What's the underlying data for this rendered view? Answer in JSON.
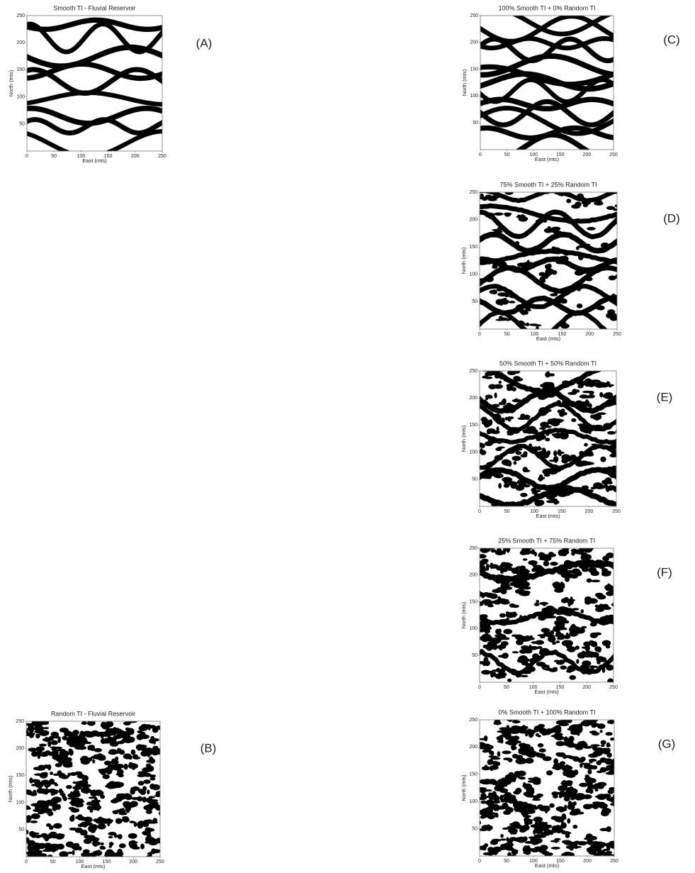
{
  "panels": [
    {
      "title": "Smooth TI - Fluvial Reservoir",
      "label": "(A)",
      "x_label": "East (mts)",
      "y_label": "North (mts)",
      "xlim": [
        0,
        250
      ],
      "ylim": [
        0,
        250
      ],
      "xticks": [
        0,
        50,
        100,
        150,
        200,
        250
      ],
      "yticks": [
        50,
        100,
        150,
        200,
        250
      ]
    },
    {
      "title": "Random TI - Fluvial Reservoir",
      "label": "(B)",
      "x_label": "East (mts)",
      "y_label": "North (mts)",
      "xlim": [
        0,
        250
      ],
      "ylim": [
        0,
        250
      ],
      "xticks": [
        0,
        50,
        100,
        150,
        200,
        250
      ],
      "yticks": [
        50,
        100,
        150,
        200,
        250
      ]
    },
    {
      "title": "100% Smooth TI + 0% Random TI",
      "label": "(C)",
      "x_label": "East (mts)",
      "y_label": "North (mts)",
      "xlim": [
        0,
        250
      ],
      "ylim": [
        0,
        250
      ],
      "xticks": [
        0,
        50,
        100,
        150,
        200,
        250
      ],
      "yticks": [
        50,
        100,
        150,
        200,
        250
      ]
    },
    {
      "title": "75% Smooth TI + 25% Random TI",
      "label": "(D)",
      "x_label": "East (mts)",
      "y_label": "North (mts)",
      "xlim": [
        0,
        250
      ],
      "ylim": [
        0,
        250
      ],
      "xticks": [
        0,
        50,
        100,
        150,
        200,
        250
      ],
      "yticks": [
        50,
        100,
        150,
        200,
        250
      ]
    },
    {
      "title": "50% Smooth TI + 50% Random TI",
      "label": "(E)",
      "x_label": "East (mts)",
      "y_label": "North (mts)",
      "xlim": [
        0,
        250
      ],
      "ylim": [
        0,
        250
      ],
      "xticks": [
        0,
        50,
        100,
        150,
        200,
        250
      ],
      "yticks": [
        50,
        100,
        150,
        200,
        250
      ]
    },
    {
      "title": "25% Smooth TI + 75% Random TI",
      "label": "(F)",
      "x_label": "East (mts)",
      "y_label": "North (mts)",
      "xlim": [
        0,
        250
      ],
      "ylim": [
        0,
        250
      ],
      "xticks": [
        0,
        50,
        100,
        150,
        200,
        250
      ],
      "yticks": [
        50,
        100,
        150,
        200,
        250
      ]
    },
    {
      "title": "0% Smooth TI + 100% Random TI",
      "label": "(G)",
      "x_label": "East (mts)",
      "y_label": "North (mts)",
      "xlim": [
        0,
        250
      ],
      "ylim": [
        0,
        250
      ],
      "xticks": [
        0,
        50,
        100,
        150,
        200,
        250
      ],
      "yticks": [
        50,
        100,
        150,
        200,
        250
      ]
    }
  ]
}
